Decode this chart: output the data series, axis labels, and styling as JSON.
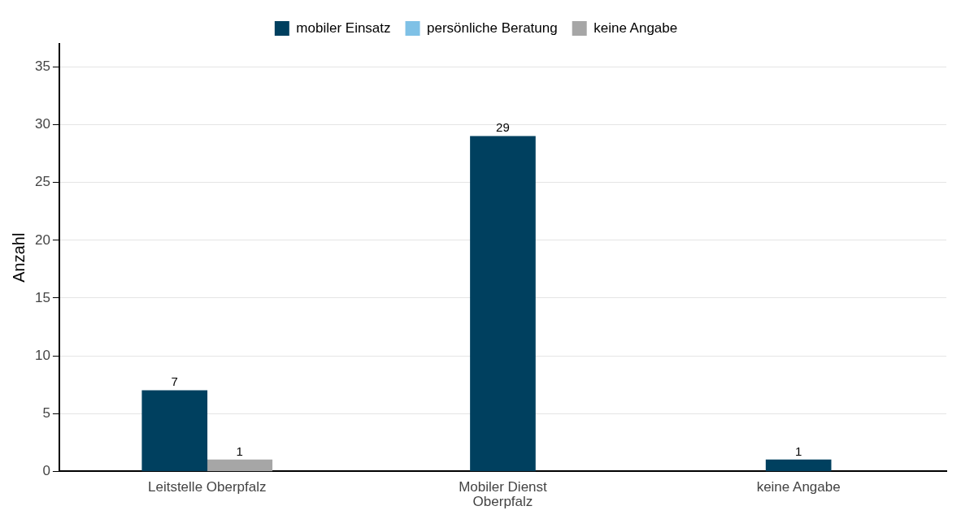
{
  "chart_data": {
    "type": "bar",
    "ylabel": "Anzahl",
    "categories": [
      "Leitstelle Oberpfalz",
      "Mobiler Dienst Oberpfalz",
      "keine Angabe"
    ],
    "series": [
      {
        "name": "mobiler Einsatz",
        "color": "#00405f",
        "values": [
          7,
          29,
          1
        ]
      },
      {
        "name": "persönliche Beratung",
        "color": "#7fc1e6",
        "values": [
          null,
          null,
          null
        ]
      },
      {
        "name": "keine Angabe",
        "color": "#a6a6a6",
        "values": [
          1,
          null,
          null
        ]
      }
    ],
    "ylim": [
      0,
      37
    ],
    "yticks": [
      0,
      5,
      10,
      15,
      20,
      25,
      30,
      35
    ],
    "grid": "y",
    "legend": "top",
    "data_labels": true
  }
}
